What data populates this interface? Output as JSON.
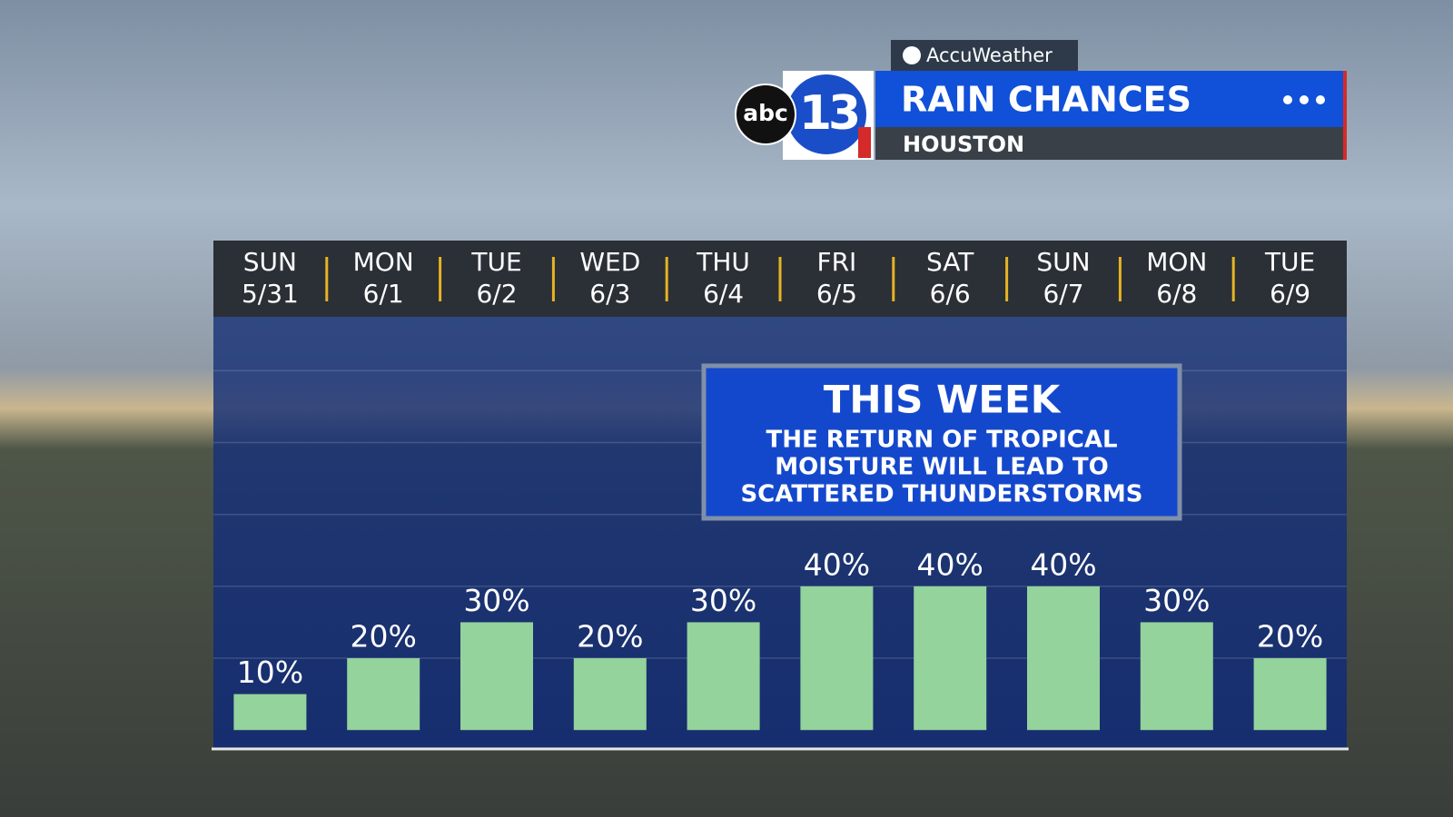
{
  "brand": "AccuWeather",
  "logo": {
    "network": "abc",
    "channel": "13"
  },
  "header": {
    "title": "RAIN CHANCES",
    "location": "HOUSTON"
  },
  "chart_data": {
    "type": "bar",
    "categories": [
      "SUN",
      "MON",
      "TUE",
      "WED",
      "THU",
      "FRI",
      "SAT",
      "SUN",
      "MON",
      "TUE"
    ],
    "dates": [
      "5/31",
      "6/1",
      "6/2",
      "6/3",
      "6/4",
      "6/5",
      "6/6",
      "6/7",
      "6/8",
      "6/9"
    ],
    "values": [
      10,
      20,
      30,
      20,
      30,
      40,
      40,
      40,
      30,
      20
    ],
    "value_labels": [
      "10%",
      "20%",
      "30%",
      "20%",
      "30%",
      "40%",
      "40%",
      "40%",
      "30%",
      "20%"
    ],
    "color": "#94d39c",
    "ylim": [
      -5,
      115
    ],
    "yticks": [
      20,
      40,
      60,
      80,
      100
    ],
    "grid": true,
    "annotation": {
      "title": "THIS WEEK",
      "lines": [
        "THE RETURN OF TROPICAL",
        "MOISTURE WILL LEAD TO",
        "SCATTERED THUNDERSTORMS"
      ]
    }
  }
}
